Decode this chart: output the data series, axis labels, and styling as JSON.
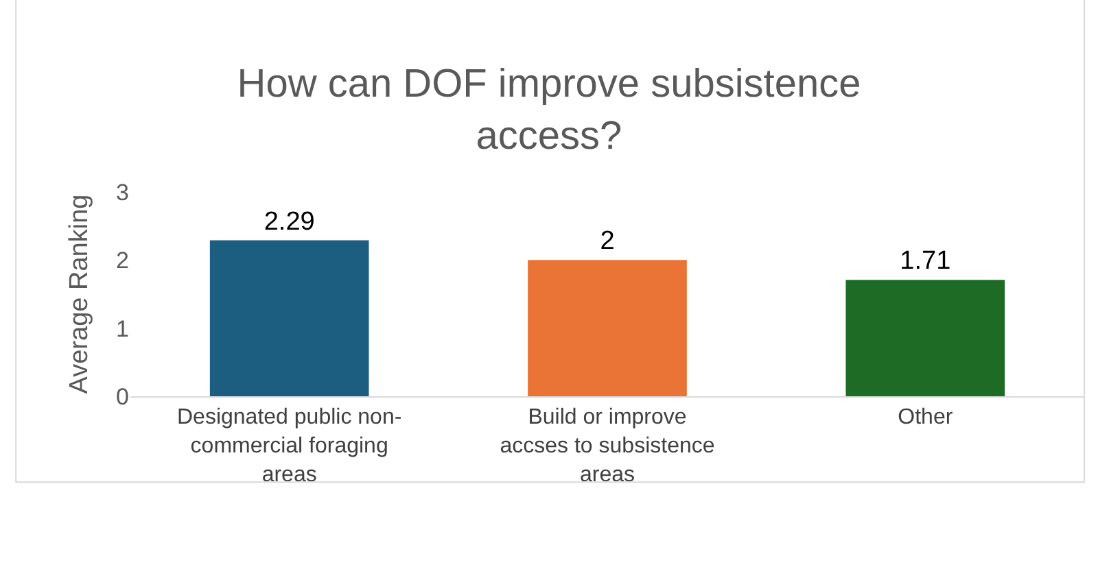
{
  "chart_data": {
    "type": "bar",
    "title": "How can DOF improve subsistence access?",
    "ylabel": "Average Ranking",
    "categories": [
      "Designated public non-commercial foraging areas",
      "Build or improve accses to subsistence areas",
      "Other"
    ],
    "values": [
      2.29,
      2,
      1.71
    ],
    "colors": [
      "#1b5e80",
      "#e97435",
      "#1e6b26"
    ],
    "ylim": [
      0,
      3
    ],
    "yticks": [
      0,
      1,
      2,
      3
    ],
    "data_labels": true
  }
}
